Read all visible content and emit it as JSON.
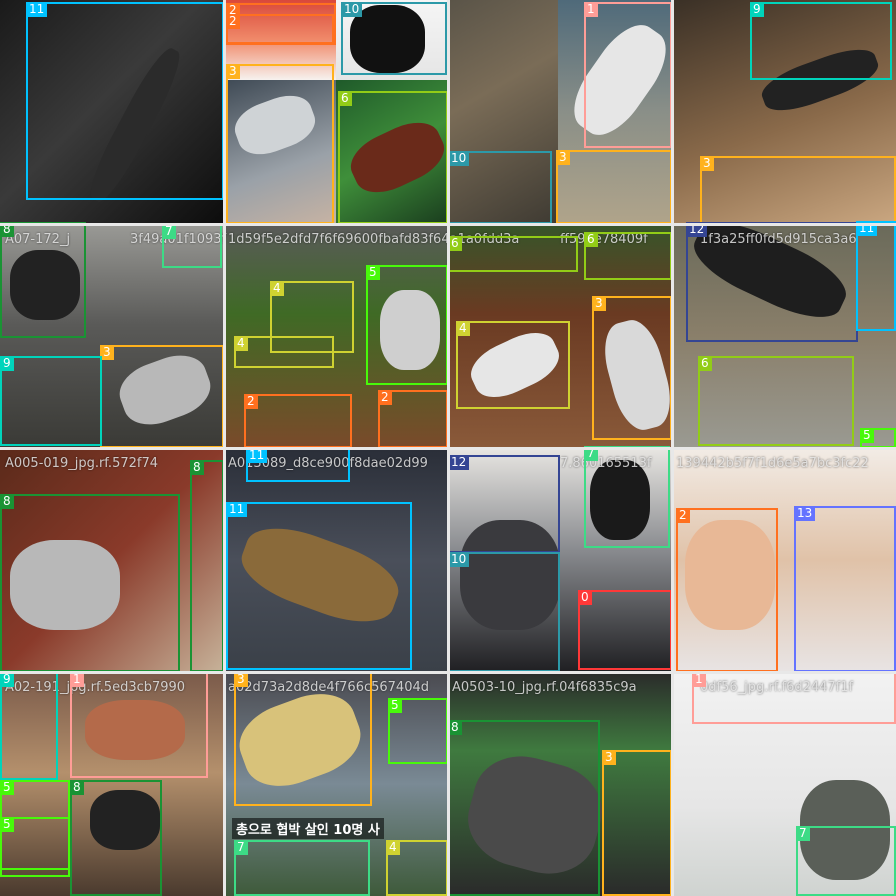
{
  "mosaic": {
    "class_colors": {
      "0": "#ff3838",
      "1": "#ff9d97",
      "2": "#ff701f",
      "3": "#ffb21d",
      "4": "#cfd231",
      "5": "#48f90a",
      "6": "#92cc17",
      "7": "#3ddb86",
      "8": "#1a9334",
      "9": "#00d4bb",
      "10": "#2c99a8",
      "11": "#00c2ff",
      "12": "#344593",
      "13": "#6473ff"
    },
    "filenames": [
      "A07-172_j",
      "3f49a01f1093f",
      "1d59f5e2dfd7f6f69600fbafd83f64a1a0fdd3a",
      "ff596e78409f",
      "1f3a25ff0fd5d915ca3a6",
      "A005-019_jpg.rf.572f74",
      "A013089_d8ce900f8dae02d99",
      "7.860165513f",
      "139442b5f7f1d6e5a7bc3fc22",
      "A02-191_jpg.rf.5ed3cb7990",
      "a02d73a2d8de4f766c567404d",
      "A0503-10_jpg.rf.04f6835c9a",
      "0df56_jpg.rf.f6d2447f1f"
    ],
    "overlay_text": "총으로 협박 살인 10명 사",
    "labels": [
      "0",
      "1",
      "2",
      "3",
      "4",
      "5",
      "6",
      "7",
      "8",
      "9",
      "10",
      "11",
      "12",
      "13"
    ]
  }
}
